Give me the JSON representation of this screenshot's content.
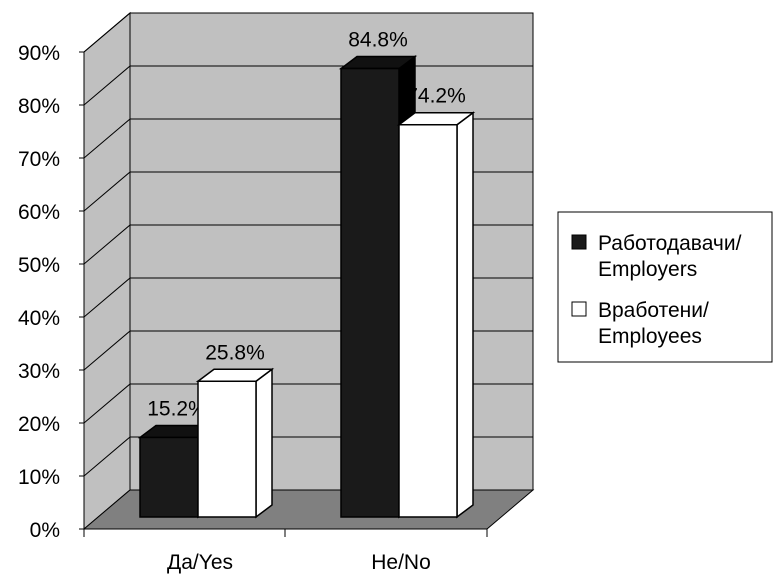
{
  "chart_data": {
    "type": "bar",
    "categories": [
      "Да/Yes",
      "Не/No"
    ],
    "series": [
      {
        "name": "Работодавачи/ Employers",
        "legend_lines": [
          "Работодавачи/",
          "Employers"
        ],
        "values": [
          15.2,
          84.8
        ],
        "labels": [
          "15.2%",
          "84.8%"
        ],
        "color": "#1a1a1a"
      },
      {
        "name": "Вработени/ Employees",
        "legend_lines": [
          "Вработени/",
          "Employees"
        ],
        "values": [
          25.8,
          74.2
        ],
        "labels": [
          "25.8%",
          "74.2%"
        ],
        "color": "#ffffff"
      }
    ],
    "ylim": [
      0,
      90
    ],
    "yticks": [
      "0%",
      "10%",
      "20%",
      "30%",
      "40%",
      "50%",
      "60%",
      "70%",
      "80%",
      "90%"
    ],
    "grid": true,
    "legend_position": "right",
    "style": "3d",
    "colors": {
      "wall": "#c0c0c0",
      "floor": "#808080",
      "grid": "#000000"
    }
  }
}
